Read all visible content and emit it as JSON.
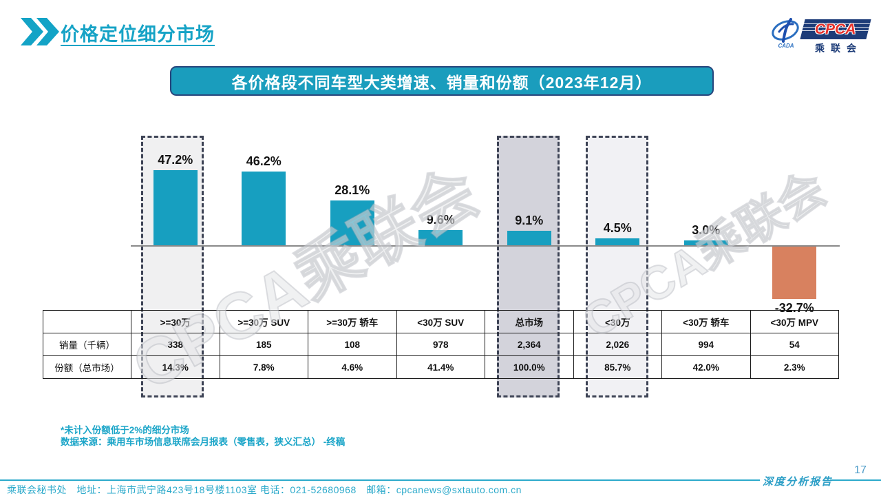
{
  "header": {
    "title": "价格定位细分市场",
    "logo": {
      "cpca": "CPCA",
      "cada": "CADA",
      "name_cn": "乘联会"
    }
  },
  "banner": {
    "title": "各价格段不同车型大类增速、销量和份额（2023年12月）"
  },
  "chart_data": {
    "type": "bar",
    "title": "各价格段不同车型大类增速、销量和份额（2023年12月）",
    "categories": [
      ">=30万",
      ">=30万 SUV",
      ">=30万 轿车",
      "<30万 SUV",
      "总市场",
      "<30万",
      "<30万 轿车",
      "<30万 MPV"
    ],
    "values": [
      47.2,
      46.2,
      28.1,
      9.6,
      9.1,
      4.5,
      3.0,
      -32.7
    ],
    "bar_labels": [
      "47.2%",
      "46.2%",
      "28.1%",
      "9.6%",
      "9.1%",
      "4.5%",
      "3.0%",
      "-32.7%"
    ],
    "unit": "%",
    "baseline": 0,
    "highlighted_categories": [
      ">=30万",
      "总市场",
      "<30万"
    ],
    "colors": {
      "positive_bar": "#179fc0",
      "negative_bar": "#d8815f"
    },
    "grid": false,
    "legend": false
  },
  "table": {
    "corner": "",
    "columns": [
      ">=30万",
      ">=30万 SUV",
      ">=30万 轿车",
      "<30万 SUV",
      "总市场",
      "<30万",
      "<30万 轿车",
      "<30万 MPV"
    ],
    "rows": [
      {
        "label": "销量（千辆）",
        "cells": [
          "338",
          "185",
          "108",
          "978",
          "2,364",
          "2,026",
          "994",
          "54"
        ]
      },
      {
        "label": "份额（总市场）",
        "cells": [
          "14.3%",
          "7.8%",
          "4.6%",
          "41.4%",
          "100.0%",
          "85.7%",
          "42.0%",
          "2.3%"
        ]
      }
    ]
  },
  "footnotes": {
    "line1": "*未计入份额低于2%的细分市场",
    "line2": "数据来源：乘用车市场信息联席会月报表（零售表，狭义汇总） -终稿"
  },
  "footer": {
    "contact": "乘联会秘书处　地址：上海市武宁路423号18号楼1103室 电话：021-52680968　邮箱：cpcanews@sxtauto.com.cn",
    "report_label": "深度分析报告",
    "page_number": "17"
  },
  "watermark": {
    "text": "CPCA乘联会"
  }
}
